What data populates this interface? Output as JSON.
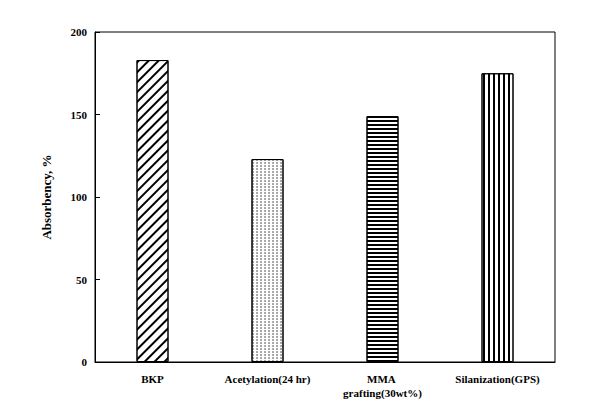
{
  "chart_data": {
    "type": "bar",
    "y_label": "Absorbency, %",
    "categories": [
      "BKP",
      "Acetylation(24 hr)",
      "MMA grafting(30wt%)",
      "Silanization(GPS)"
    ],
    "values": [
      183,
      123,
      149,
      175
    ],
    "color": "#000000",
    "ylim": [
      0,
      200
    ],
    "yticks": [
      0,
      50,
      100,
      150,
      200
    ],
    "grid": false
  }
}
